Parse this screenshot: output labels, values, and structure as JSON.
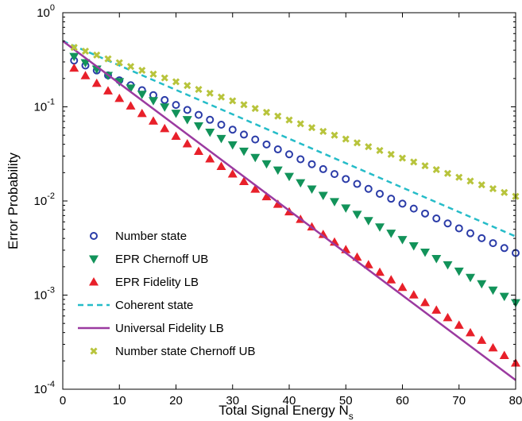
{
  "chart_data": {
    "type": "line",
    "title": "",
    "xlabel": "Total Signal Energy N",
    "xlabel_sub": "s",
    "ylabel": "Error Probability",
    "xlim": [
      0,
      80
    ],
    "ylim": [
      0.0001,
      1
    ],
    "yscale": "log",
    "xticks": [
      "0",
      "10",
      "20",
      "30",
      "40",
      "50",
      "60",
      "70",
      "80"
    ],
    "yticks": [
      {
        "base": "10",
        "exp": "-4"
      },
      {
        "base": "10",
        "exp": "-3"
      },
      {
        "base": "10",
        "exp": "-2"
      },
      {
        "base": "10",
        "exp": "-1"
      },
      {
        "base": "10",
        "exp": "0"
      }
    ],
    "grid": false,
    "legend_position": "bottom-left",
    "series": [
      {
        "name": "Number state",
        "marker": "circle",
        "color": "#2b3ca8",
        "y0": 0.35,
        "y80": 0.0028
      },
      {
        "name": "EPR Chernoff UB",
        "marker": "triangle-down",
        "color": "#12935a",
        "y0": 0.4,
        "y80": 0.00083
      },
      {
        "name": "EPR Fidelity LB",
        "marker": "triangle-up",
        "color": "#e8202a",
        "y0": 0.31,
        "y80": 0.00019
      },
      {
        "name": "Coherent state",
        "marker": "dashed-line",
        "color": "#25bcc8",
        "y0": 0.5,
        "y80": 0.0042
      },
      {
        "name": "Universal Fidelity LB",
        "marker": "solid-line",
        "color": "#9b3aa0",
        "y0": 0.5,
        "y80": 0.000125
      },
      {
        "name": "Number state Chernoff UB",
        "marker": "x",
        "color": "#b8c43c",
        "y0": 0.47,
        "y80": 0.0112
      }
    ]
  }
}
